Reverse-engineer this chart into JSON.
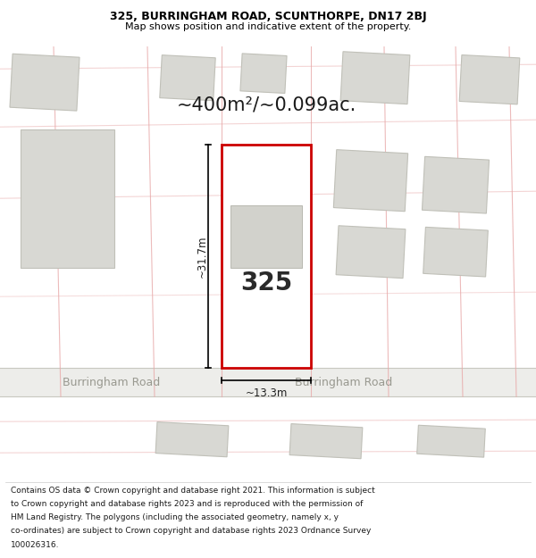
{
  "title": "325, BURRINGHAM ROAD, SCUNTHORPE, DN17 2BJ",
  "subtitle": "Map shows position and indicative extent of the property.",
  "footer_lines": [
    "Contains OS data © Crown copyright and database right 2021. This information is subject",
    "to Crown copyright and database rights 2023 and is reproduced with the permission of",
    "HM Land Registry. The polygons (including the associated geometry, namely x, y",
    "co-ordinates) are subject to Crown copyright and database rights 2023 Ordnance Survey",
    "100026316."
  ],
  "area_label": "~400m²/~0.099ac.",
  "width_label": "~13.3m",
  "height_label": "~31.7m",
  "plot_number": "325",
  "map_bg": "#f2f2ee",
  "plot_red": "#cc0000",
  "road_label": "Burringham Road",
  "road_bg": "#f8f8f5",
  "grid_color": "#e8aaaa",
  "building_fill": "#d8d8d3",
  "building_edge": "#c0c0b8"
}
